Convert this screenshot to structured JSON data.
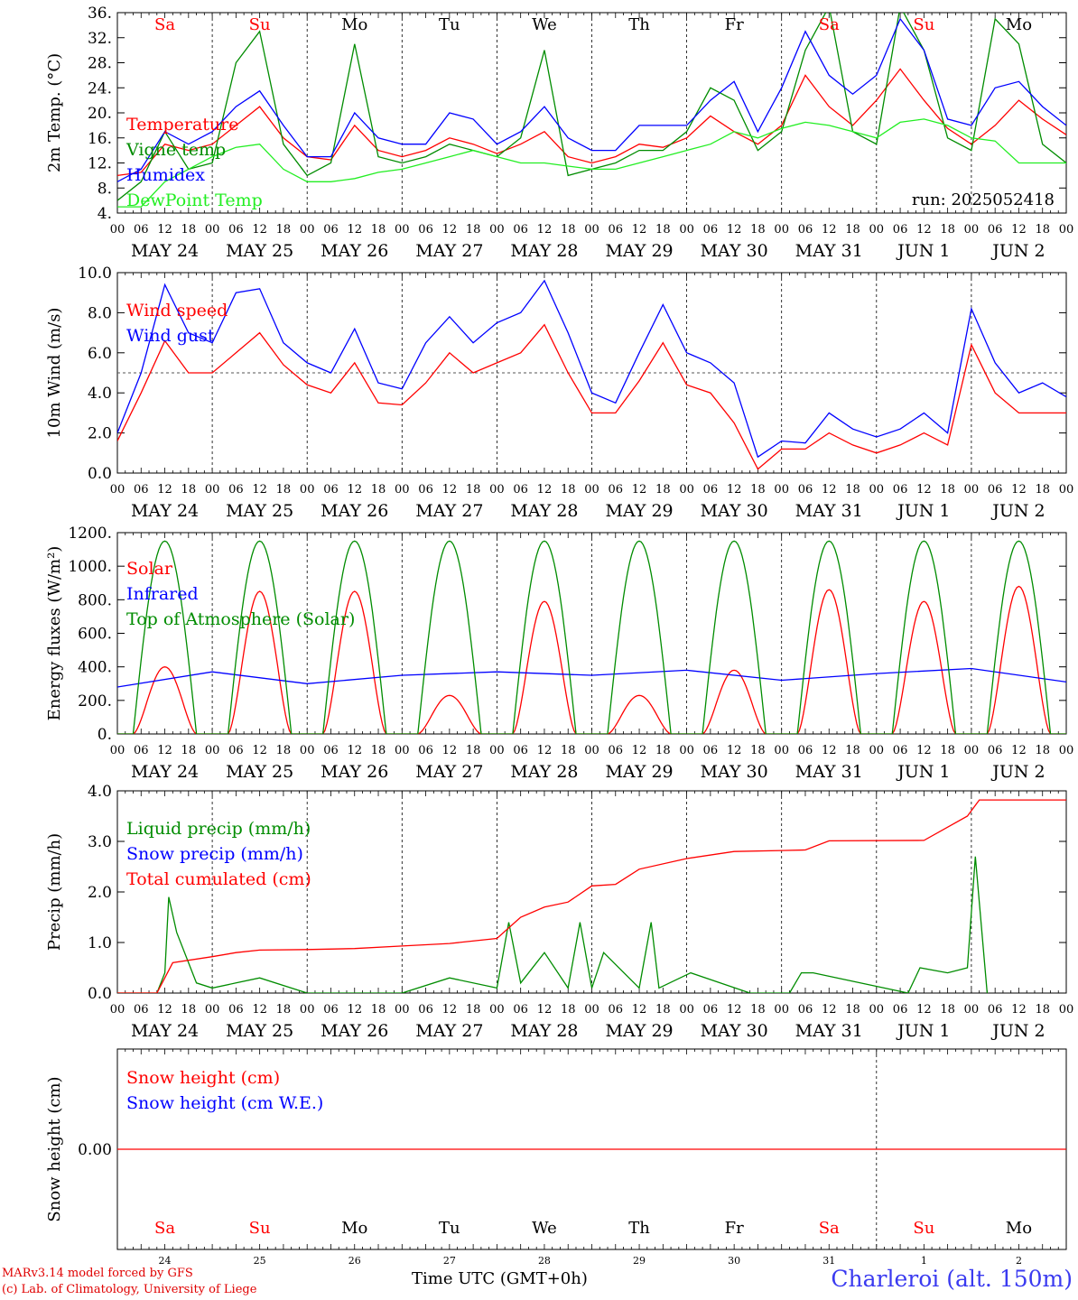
{
  "colors": {
    "red": "#ff0000",
    "green": "#008c00",
    "blue": "#0000ff",
    "lightgreen": "#22ee22",
    "axis": "#000000"
  },
  "run_label": "run: 2025052418",
  "day_abbrev": [
    "Sa",
    "Su",
    "Mo",
    "Tu",
    "We",
    "Th",
    "Fr",
    "Sa",
    "Su",
    "Mo"
  ],
  "weekend_flags": [
    true,
    true,
    false,
    false,
    false,
    false,
    false,
    true,
    true,
    false
  ],
  "date_labels": [
    "MAY 24",
    "MAY 25",
    "MAY 26",
    "MAY 27",
    "MAY 28",
    "MAY 29",
    "MAY 30",
    "MAY 31",
    "JUN  1",
    "JUN  2"
  ],
  "day_numbers": [
    "24",
    "25",
    "26",
    "27",
    "28",
    "29",
    "30",
    "31",
    "1",
    "2"
  ],
  "hour_ticks": [
    "00",
    "06",
    "12",
    "18"
  ],
  "last_hour_tick": "00",
  "footer": {
    "model": "MARv3.14 model forced by GFS",
    "credit": "(c) Lab. of Climatology, University of Liege",
    "x_title": "Time UTC (GMT+0h)",
    "station": "Charleroi (alt. 150m)"
  },
  "chart_data": [
    {
      "type": "line",
      "ylabel": "2m Temp. (°C)",
      "ylim": [
        4,
        36
      ],
      "yticks": [
        "36.",
        "32.",
        "28.",
        "24.",
        "20.",
        "16.",
        "12.",
        "8.",
        "4."
      ],
      "x_unit": "hours since 2025-05-24 00 UTC",
      "legend": [
        "Temperature",
        "Vigne temp",
        "Humidex",
        "DewPoint Temp"
      ],
      "series": [
        {
          "name": "Temperature",
          "color": "red",
          "x": [
            0,
            6,
            12,
            18,
            24,
            30,
            36,
            42,
            48,
            54,
            60,
            66,
            72,
            78,
            84,
            90,
            96,
            102,
            108,
            114,
            120,
            126,
            132,
            138,
            144,
            150,
            156,
            162,
            168,
            174,
            180,
            186,
            192,
            198,
            204,
            210,
            216,
            222,
            228,
            234,
            240
          ],
          "values": [
            10,
            10.5,
            15,
            14,
            15,
            18,
            21,
            16,
            13,
            12.5,
            18,
            14,
            13,
            14,
            16,
            15,
            13.5,
            15,
            17,
            13,
            12,
            13,
            15,
            14.5,
            16,
            19.5,
            17,
            15,
            18,
            26,
            21,
            18,
            22,
            27,
            22,
            17.5,
            15,
            18,
            22,
            19,
            16.5
          ]
        },
        {
          "name": "Vigne temp",
          "color": "green",
          "x": [
            0,
            6,
            12,
            18,
            24,
            30,
            36,
            42,
            48,
            54,
            60,
            66,
            72,
            78,
            84,
            90,
            96,
            102,
            108,
            114,
            120,
            126,
            132,
            138,
            144,
            150,
            156,
            162,
            168,
            174,
            180,
            186,
            192,
            198,
            204,
            210,
            216,
            222,
            228,
            234,
            240
          ],
          "values": [
            6,
            9,
            17,
            11,
            12,
            28,
            33,
            15,
            10,
            12,
            31,
            13,
            12,
            13,
            15,
            14,
            13,
            16,
            30,
            10,
            11,
            12,
            14,
            14,
            17,
            24,
            22,
            14,
            17,
            30,
            37,
            17,
            15,
            37,
            30,
            16,
            14,
            35,
            31,
            15,
            12
          ]
        },
        {
          "name": "Humidex",
          "color": "blue",
          "x": [
            0,
            6,
            12,
            18,
            24,
            30,
            36,
            42,
            48,
            54,
            60,
            66,
            72,
            78,
            84,
            90,
            96,
            102,
            108,
            114,
            120,
            126,
            132,
            138,
            144,
            150,
            156,
            162,
            168,
            174,
            180,
            186,
            192,
            198,
            204,
            210,
            216,
            222,
            228,
            234,
            240
          ],
          "values": [
            9,
            11,
            17,
            15,
            17,
            21,
            23.5,
            18,
            13,
            13,
            20,
            16,
            15,
            15,
            20,
            19,
            15,
            17,
            21,
            16,
            14,
            14,
            18,
            18,
            18,
            22,
            25,
            17,
            24,
            33,
            26,
            23,
            26,
            35,
            30,
            19,
            18,
            24,
            25,
            21,
            18
          ]
        },
        {
          "name": "DewPoint Temp",
          "color": "lightgreen",
          "x": [
            0,
            6,
            12,
            18,
            24,
            30,
            36,
            42,
            48,
            54,
            60,
            66,
            72,
            78,
            84,
            90,
            96,
            102,
            108,
            114,
            120,
            126,
            132,
            138,
            144,
            150,
            156,
            162,
            168,
            174,
            180,
            186,
            192,
            198,
            204,
            210,
            216,
            222,
            228,
            234,
            240
          ],
          "values": [
            5,
            5,
            9,
            11,
            13,
            14.5,
            15,
            11,
            9,
            9,
            9.5,
            10.5,
            11,
            12,
            13,
            14,
            13,
            12,
            12,
            11.5,
            11,
            11,
            12,
            13,
            14,
            15,
            17,
            16,
            17.5,
            18.5,
            18,
            17,
            16,
            18.5,
            19,
            18,
            16,
            15.5,
            12,
            12,
            12
          ]
        }
      ]
    },
    {
      "type": "line",
      "ylabel": "10m Wind (m/s)",
      "ylim": [
        0,
        10
      ],
      "yticks": [
        "10.0",
        "8.0",
        "6.0",
        "4.0",
        "2.0",
        "0.0"
      ],
      "reference_line": 5,
      "legend": [
        "Wind speed",
        "Wind gust"
      ],
      "series": [
        {
          "name": "Wind speed",
          "color": "red",
          "x": [
            0,
            6,
            12,
            18,
            24,
            30,
            36,
            42,
            48,
            54,
            60,
            66,
            72,
            78,
            84,
            90,
            96,
            102,
            108,
            114,
            120,
            126,
            132,
            138,
            144,
            150,
            156,
            162,
            168,
            174,
            180,
            186,
            192,
            198,
            204,
            210,
            216,
            222,
            228,
            234,
            240
          ],
          "values": [
            1.6,
            4,
            6.6,
            5,
            5,
            6,
            7,
            5.4,
            4.4,
            4,
            5.5,
            3.5,
            3.4,
            4.5,
            6,
            5,
            5.5,
            6,
            7.4,
            5,
            3,
            3,
            4.6,
            6.5,
            4.4,
            4,
            2.5,
            0.2,
            1.2,
            1.2,
            2,
            1.4,
            1,
            1.4,
            2,
            1.4,
            6.4,
            4,
            3,
            3,
            3
          ]
        },
        {
          "name": "Wind gust",
          "color": "blue",
          "x": [
            0,
            6,
            12,
            18,
            24,
            30,
            36,
            42,
            48,
            54,
            60,
            66,
            72,
            78,
            84,
            90,
            96,
            102,
            108,
            114,
            120,
            126,
            132,
            138,
            144,
            150,
            156,
            162,
            168,
            174,
            180,
            186,
            192,
            198,
            204,
            210,
            216,
            222,
            228,
            234,
            240
          ],
          "values": [
            2,
            5,
            9.4,
            7,
            6.5,
            9,
            9.2,
            6.5,
            5.5,
            5,
            7.2,
            4.5,
            4.2,
            6.5,
            7.8,
            6.5,
            7.5,
            8,
            9.6,
            7,
            4,
            3.5,
            6,
            8.4,
            6,
            5.5,
            4.5,
            0.8,
            1.6,
            1.5,
            3,
            2.2,
            1.8,
            2.2,
            3,
            2,
            8.2,
            5.5,
            4,
            4.5,
            3.8
          ]
        }
      ]
    },
    {
      "type": "line",
      "ylabel": "Energy fluxes (W/m²)",
      "ylim": [
        0,
        1200
      ],
      "yticks": [
        "1200.",
        "1000.",
        "800.",
        "600.",
        "400.",
        "200.",
        "0."
      ],
      "legend": [
        "Solar",
        "Infrared",
        "Top of Atmosphere (Solar)"
      ],
      "series": [
        {
          "name": "Solar",
          "color": "red",
          "daily_peaks": [
            400,
            850,
            850,
            230,
            790,
            230,
            380,
            860,
            790,
            880
          ]
        },
        {
          "name": "Infrared",
          "color": "blue",
          "x": [
            0,
            24,
            48,
            72,
            96,
            120,
            144,
            168,
            192,
            216,
            240
          ],
          "values": [
            280,
            370,
            300,
            350,
            370,
            350,
            380,
            320,
            360,
            390,
            310
          ]
        },
        {
          "name": "Top of Atmosphere (Solar)",
          "color": "green",
          "daily_peak": 1150,
          "sunrise_hour": 4,
          "sunset_hour": 20
        }
      ]
    },
    {
      "type": "line",
      "ylabel": "Precip (mm/h)",
      "ylim": [
        0,
        4
      ],
      "yticks": [
        "4.0",
        "3.0",
        "2.0",
        "1.0",
        "0.0"
      ],
      "legend": [
        "Liquid precip (mm/h)",
        "Snow precip (mm/h)",
        "Total cumulated (cm)"
      ],
      "series": [
        {
          "name": "Liquid precip (mm/h)",
          "color": "green",
          "x": [
            0,
            10,
            12,
            13,
            15,
            20,
            24,
            30,
            36,
            48,
            72,
            84,
            96,
            99,
            102,
            108,
            114,
            117,
            120,
            123,
            132,
            135,
            137,
            145,
            160,
            170,
            173,
            176,
            200,
            203,
            210,
            215,
            217,
            220
          ],
          "values": [
            0,
            0,
            0.4,
            1.9,
            1.2,
            0.2,
            0.1,
            0.2,
            0.3,
            0,
            0,
            0.3,
            0.1,
            1.4,
            0.2,
            0.8,
            0.1,
            1.4,
            0.1,
            0.8,
            0.1,
            1.4,
            0.1,
            0.4,
            0,
            0,
            0.4,
            0.4,
            0,
            0.5,
            0.4,
            0.5,
            2.7,
            0
          ]
        },
        {
          "name": "Total cumulated (cm)",
          "color": "red",
          "x": [
            0,
            10,
            14,
            24,
            30,
            36,
            48,
            60,
            72,
            84,
            96,
            102,
            108,
            114,
            120,
            126,
            132,
            144,
            156,
            168,
            174,
            180,
            204,
            215,
            218,
            240
          ],
          "values": [
            0,
            0,
            0.6,
            0.72,
            0.8,
            0.85,
            0.86,
            0.88,
            0.93,
            0.98,
            1.08,
            1.5,
            1.7,
            1.8,
            2.12,
            2.15,
            2.45,
            2.66,
            2.8,
            2.82,
            2.83,
            3.01,
            3.02,
            3.5,
            3.82,
            3.82
          ]
        }
      ]
    },
    {
      "type": "line",
      "ylabel": "Snow height (cm)",
      "ylim": [
        -1,
        1
      ],
      "yticks": [
        "0.00"
      ],
      "legend": [
        "Snow height (cm)",
        "Snow height (cm W.E.)"
      ],
      "series": [
        {
          "name": "Snow height (cm)",
          "color": "red",
          "x": [
            0,
            240
          ],
          "values": [
            0,
            0
          ]
        }
      ]
    }
  ]
}
